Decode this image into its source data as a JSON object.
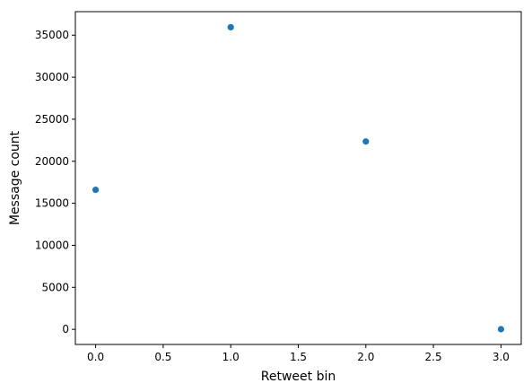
{
  "chart_data": {
    "type": "scatter",
    "xlabel": "Retweet bin",
    "ylabel": "Message count",
    "xlim": [
      -0.15,
      3.15
    ],
    "ylim": [
      -1800,
      37800
    ],
    "grid": false,
    "marker_color": "#1f77b4",
    "x_ticks": [
      0.0,
      0.5,
      1.0,
      1.5,
      2.0,
      2.5,
      3.0
    ],
    "x_tick_labels": [
      "0.0",
      "0.5",
      "1.0",
      "1.5",
      "2.0",
      "2.5",
      "3.0"
    ],
    "y_ticks": [
      0,
      5000,
      10000,
      15000,
      20000,
      25000,
      30000,
      35000
    ],
    "y_tick_labels": [
      "0",
      "5000",
      "10000",
      "15000",
      "20000",
      "25000",
      "30000",
      "35000"
    ],
    "points": [
      {
        "x": 0,
        "y": 16600
      },
      {
        "x": 1,
        "y": 35950
      },
      {
        "x": 2,
        "y": 22350
      },
      {
        "x": 3,
        "y": 15
      }
    ]
  }
}
